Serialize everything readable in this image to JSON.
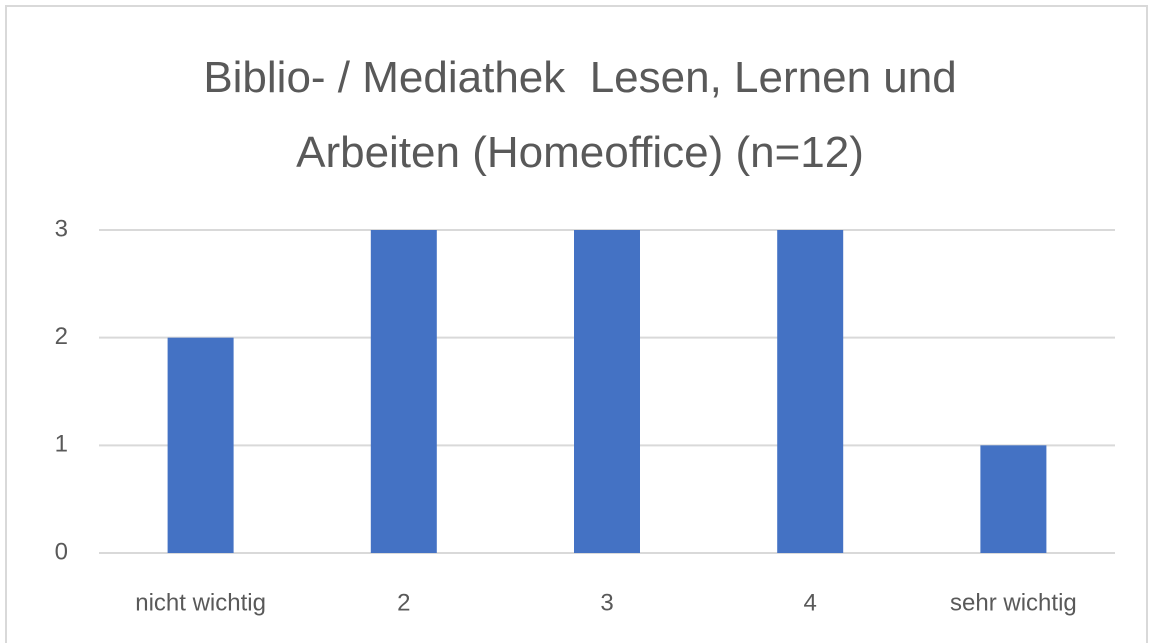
{
  "chart_data": {
    "type": "bar",
    "title": "Biblio- / Mediathek  Lesen, Lernen und Arbeiten (Homeoffice) (n=12)",
    "categories": [
      "nicht wichtig",
      "2",
      "3",
      "4",
      "sehr wichtig"
    ],
    "values": [
      2,
      3,
      3,
      3,
      1
    ],
    "color": "#4472c4",
    "ylim": [
      0,
      3
    ],
    "yticks": [
      0,
      1,
      2,
      3
    ],
    "grid": true
  }
}
